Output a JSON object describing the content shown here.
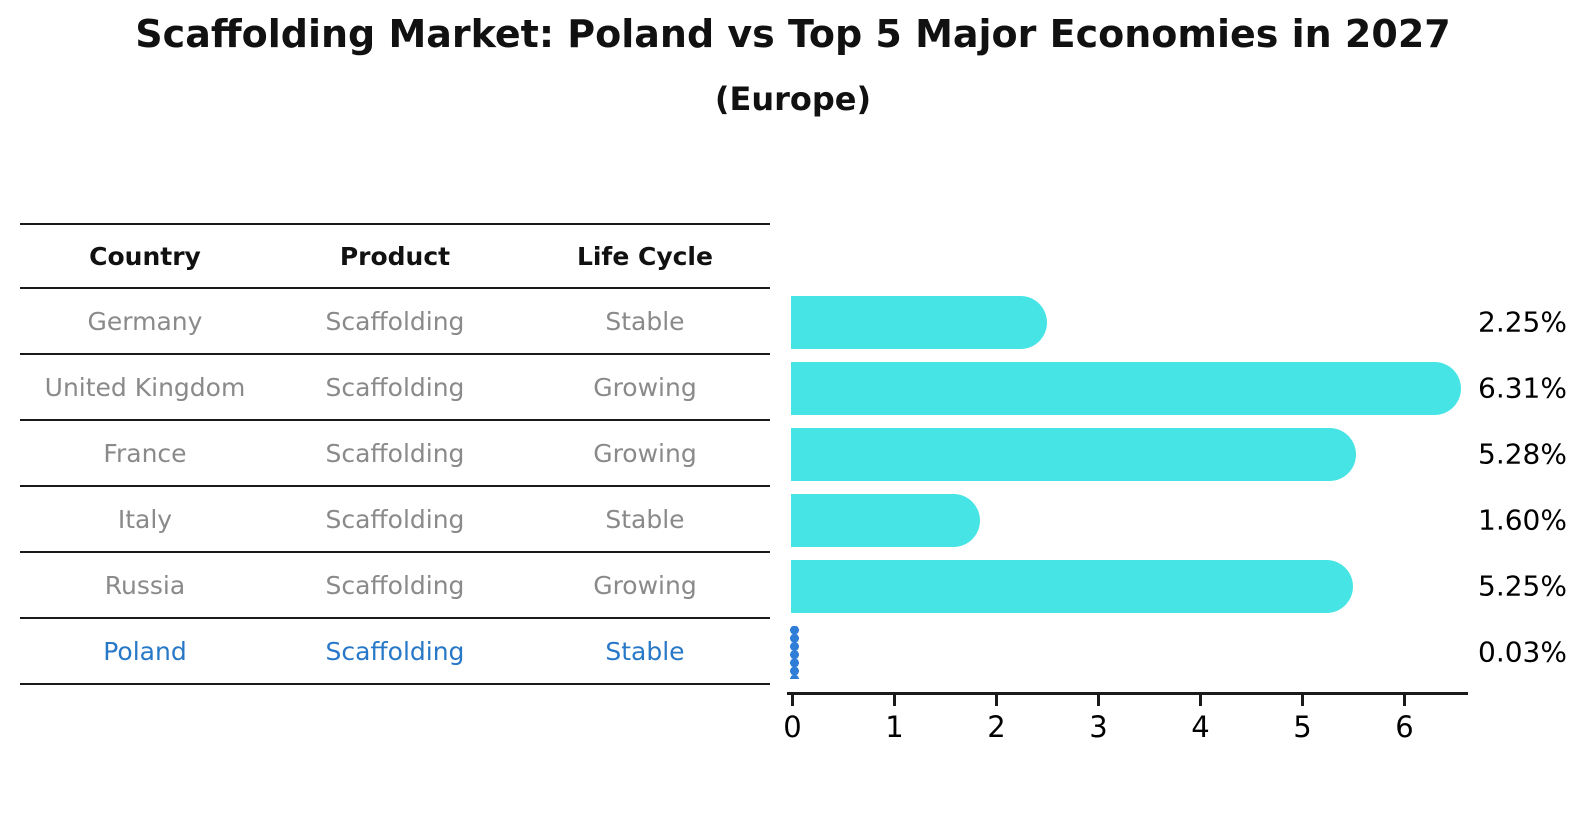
{
  "figure": {
    "title": "Scaffolding Market: Poland vs Top 5 Major Economies in 2027",
    "subtitle": "(Europe)"
  },
  "table": {
    "columns": [
      "Country",
      "Product",
      "Life Cycle"
    ],
    "rows": [
      {
        "country": "Germany",
        "product": "Scaffolding",
        "life_cycle": "Stable",
        "highlighted": false
      },
      {
        "country": "United Kingdom",
        "product": "Scaffolding",
        "life_cycle": "Growing",
        "highlighted": false
      },
      {
        "country": "France",
        "product": "Scaffolding",
        "life_cycle": "Growing",
        "highlighted": false
      },
      {
        "country": "Italy",
        "product": "Scaffolding",
        "life_cycle": "Stable",
        "highlighted": false
      },
      {
        "country": "Russia",
        "product": "Scaffolding",
        "life_cycle": "Growing",
        "highlighted": false
      },
      {
        "country": "Poland",
        "product": "Scaffolding",
        "life_cycle": "Stable",
        "highlighted": true
      }
    ]
  },
  "chart_data": {
    "type": "bar",
    "orientation": "horizontal",
    "title": "Scaffolding Market: Poland vs Top 5 Major Economies in 2027",
    "subtitle": "(Europe)",
    "categories": [
      "Germany",
      "United Kingdom",
      "France",
      "Italy",
      "Russia",
      "Poland"
    ],
    "values": [
      2.25,
      6.31,
      5.28,
      1.6,
      5.25,
      0.03
    ],
    "value_labels": [
      "2.25%",
      "6.31%",
      "5.28%",
      "1.60%",
      "5.25%",
      "0.03%"
    ],
    "x_ticks": [
      0,
      1,
      2,
      3,
      4,
      5,
      6
    ],
    "xlim": [
      0,
      6.65
    ],
    "xlabel": "",
    "ylabel": "",
    "grid": false,
    "legend": "none",
    "bar_color": "#46e4e4",
    "highlight_bar_color": "#2e7dd6",
    "highlight_index": 5
  },
  "colors": {
    "bar": "#46e4e4",
    "highlight_bar": "#2e7dd6",
    "row_text": "#8a8a8a",
    "highlight_text": "#2878c8",
    "line": "#1a1a1a",
    "background": "#ffffff"
  }
}
